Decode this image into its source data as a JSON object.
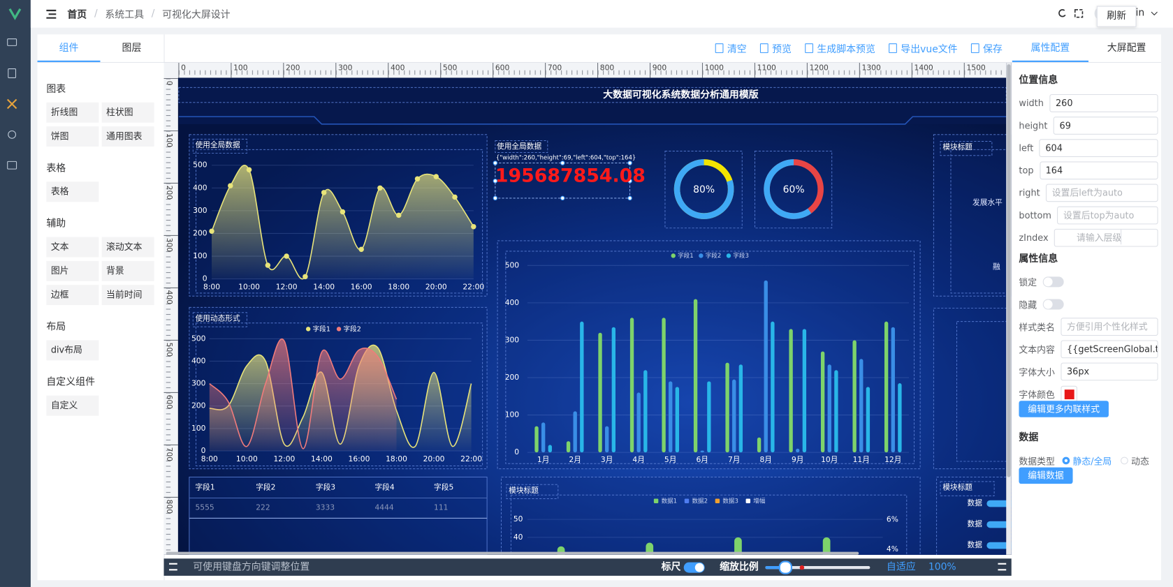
{
  "header": {
    "breadcrumb": [
      "首页",
      "系统工具",
      "可视化大屏设计"
    ],
    "separator": "/",
    "tooltip": "刷新",
    "user": "in"
  },
  "left_panel": {
    "tabs": [
      "组件",
      "图层"
    ],
    "active": 0,
    "groups": [
      {
        "title": "图表",
        "items": [
          "折线图",
          "柱状图",
          "饼图",
          "通用图表"
        ]
      },
      {
        "title": "表格",
        "items": [
          "表格"
        ]
      },
      {
        "title": "辅助",
        "items": [
          "文本",
          "滚动文本",
          "图片",
          "背景",
          "边框",
          "当前时间"
        ]
      },
      {
        "title": "布局",
        "items": [
          "div布局"
        ]
      },
      {
        "title": "自定义组件",
        "items": [
          "自定义"
        ]
      }
    ]
  },
  "toolbar": {
    "buttons": [
      "清空",
      "预览",
      "生成脚本预览",
      "导出vue文件",
      "保存"
    ]
  },
  "rulers": {
    "top": [
      0,
      100,
      200,
      300,
      400,
      500,
      600,
      700,
      800,
      900,
      1000,
      1100,
      1200,
      1300,
      1400,
      1500
    ],
    "left": [
      0,
      100,
      200,
      300,
      400,
      500,
      600,
      700,
      800
    ]
  },
  "canvas": {
    "title": "大数据可视化系统数据分析通用模版",
    "line_chart": {
      "type": "line",
      "label": "使用全局数据",
      "categories": [
        "8:00",
        null,
        "10:00",
        null,
        "12:00",
        null,
        "14:00",
        null,
        "16:00",
        null,
        "18:00",
        null,
        "20:00",
        null,
        "22:00"
      ],
      "values": [
        210,
        410,
        480,
        60,
        100,
        10,
        380,
        295,
        130,
        400,
        280,
        440,
        450,
        360,
        230
      ],
      "color": "#e8e47a",
      "ylim": [
        0,
        500
      ],
      "yticks": [
        0,
        100,
        200,
        300,
        400,
        500
      ]
    },
    "area_chart": {
      "type": "line",
      "label": "使用动态形式",
      "categories": [
        "8:00",
        null,
        "10:00",
        null,
        "12:00",
        null,
        "14:00",
        null,
        "16:00",
        null,
        "18:00",
        null,
        "20:00",
        null,
        "22:00"
      ],
      "series": [
        {
          "name": "字段1",
          "color": "#e8e47a",
          "values": [
            190,
            200,
            380,
            400,
            30,
            150,
            350,
            30,
            380,
            460,
            180,
            20,
            350,
            20,
            300
          ]
        },
        {
          "name": "字段2",
          "color": "#f07b7b",
          "values": [
            300,
            220,
            20,
            300,
            490,
            10,
            440,
            320,
            450,
            420,
            230,
            null,
            null,
            null,
            null
          ]
        }
      ],
      "ylim": [
        0,
        500
      ],
      "yticks": [
        0,
        100,
        200,
        300,
        400,
        500
      ]
    },
    "table": {
      "columns": [
        "字段1",
        "字段2",
        "字段3",
        "字段4",
        "字段5"
      ],
      "rows": [
        [
          5555,
          222,
          3333,
          4444,
          111
        ]
      ]
    },
    "text_widget": {
      "label": "使用全局数据",
      "info": "{\"width\":260,\"height\":69,\"left\":604,\"top\":164}",
      "value": 195687854.08,
      "color": "#ff1a1a"
    },
    "gauges": {
      "type": "ring",
      "values": [
        80,
        60
      ],
      "value_labels": [
        "80%",
        "60%"
      ],
      "colors": [
        "#f2e500",
        "#e84545"
      ],
      "track_color": "#3fa9f5"
    },
    "bar_chart": {
      "type": "bar",
      "categories": [
        "1月",
        "2月",
        "3月",
        "4月",
        "5月",
        "6月",
        "7月",
        "8月",
        "9月",
        "10月",
        "11月",
        "12月"
      ],
      "series": [
        {
          "name": "字段1",
          "color": "#7ed36b",
          "values": [
            70,
            30,
            320,
            360,
            360,
            410,
            240,
            40,
            330,
            270,
            300,
            350
          ]
        },
        {
          "name": "字段2",
          "color": "#3a8ee6",
          "values": [
            80,
            110,
            70,
            160,
            190,
            5,
            195,
            460,
            10,
            235,
            250,
            335
          ]
        },
        {
          "name": "字段3",
          "color": "#29b6e8",
          "values": [
            20,
            350,
            335,
            220,
            175,
            190,
            235,
            350,
            330,
            220,
            175,
            185
          ]
        }
      ],
      "ylim": [
        0,
        500
      ],
      "yticks": [
        0,
        100,
        200,
        300,
        400,
        500
      ]
    },
    "bottom_chart": {
      "type": "bar",
      "label": "模块标题",
      "legend": [
        {
          "name": "数据1",
          "color": "#7ed36b"
        },
        {
          "name": "数据2",
          "color": "#4f7df0"
        },
        {
          "name": "数据3",
          "color": "#f0a030"
        },
        {
          "name": "增幅",
          "color": "#ffffff"
        }
      ],
      "values": [
        35,
        37,
        40,
        40
      ],
      "color": "#7ed36b",
      "ylim": [
        0,
        54
      ],
      "yticks": [
        40,
        50
      ],
      "y2lim": [
        0,
        6.5
      ],
      "y2ticks": [
        {
          "value": 4,
          "label": "4%"
        },
        {
          "value": 6,
          "label": "6%"
        }
      ]
    },
    "side_panels": [
      {
        "label": "模块标题",
        "texts": [
          "发展水平",
          "融"
        ]
      },
      {
        "label": "模块标题",
        "rows": [
          "数据",
          "数据",
          "数据"
        ]
      }
    ]
  },
  "footer": {
    "hint": "可使用键盘方向键调整位置",
    "ruler": "标尺",
    "zoom": "缩放比例",
    "fit": "自适应",
    "zoom_value": "100%"
  },
  "right_panel": {
    "tabs": [
      "属性配置",
      "大屏配置"
    ],
    "active": 0,
    "sections": [
      {
        "title": "位置信息",
        "fields": [
          {
            "label": "width",
            "value": 260
          },
          {
            "label": "height",
            "value": 69
          },
          {
            "label": "left",
            "value": 604
          },
          {
            "label": "top",
            "value": 164
          },
          {
            "label": "right",
            "placeholder": "设置后left为auto"
          },
          {
            "label": "bottom",
            "placeholder": "设置后top为auto"
          },
          {
            "label": "zIndex",
            "placeholder": "请输入层级"
          }
        ]
      },
      {
        "title": "属性信息",
        "fields": [
          {
            "label": "锁定",
            "switch": false
          },
          {
            "label": "隐藏",
            "switch": false
          },
          {
            "label": "样式类名",
            "placeholder": "方便引用个性化样式"
          },
          {
            "label": "文本内容",
            "value": "{{getScreenGlobal.textN"
          },
          {
            "label": "字体大小",
            "value": "36px"
          },
          {
            "label": "字体颜色",
            "color": "#e81818"
          }
        ],
        "button": "编辑更多内联样式"
      },
      {
        "title": "数据",
        "fields": [
          {
            "label": "数据类型",
            "options": [
              "静态/全局",
              "动态"
            ],
            "selected": 0
          }
        ],
        "button": "编辑数据"
      }
    ]
  }
}
